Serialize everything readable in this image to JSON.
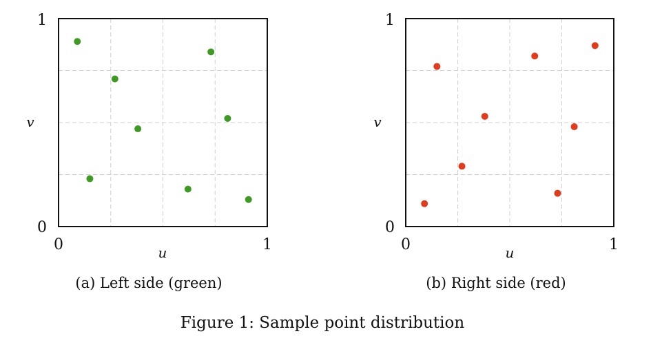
{
  "figure_caption": "Figure 1: Sample point distribution",
  "colors": {
    "green": "#3f9a24",
    "red": "#e23a1d",
    "grid": "#cfcfcf",
    "frame": "#111111"
  },
  "chart_data": [
    {
      "type": "scatter",
      "caption": "(a) Left side (green)",
      "xlabel": "u",
      "ylabel": "v",
      "xlim": [
        0,
        1
      ],
      "ylim": [
        0,
        1
      ],
      "x_ticks": [
        "0",
        "1"
      ],
      "y_ticks": [
        "0",
        "1"
      ],
      "grid": true,
      "color": "#3f9a24",
      "points": [
        {
          "x": 0.09,
          "y": 0.89
        },
        {
          "x": 0.27,
          "y": 0.71
        },
        {
          "x": 0.38,
          "y": 0.47
        },
        {
          "x": 0.15,
          "y": 0.23
        },
        {
          "x": 0.62,
          "y": 0.18
        },
        {
          "x": 0.73,
          "y": 0.84
        },
        {
          "x": 0.81,
          "y": 0.52
        },
        {
          "x": 0.91,
          "y": 0.13
        }
      ]
    },
    {
      "type": "scatter",
      "caption": "(b) Right side (red)",
      "xlabel": "u",
      "ylabel": "v",
      "xlim": [
        0,
        1
      ],
      "ylim": [
        0,
        1
      ],
      "x_ticks": [
        "0",
        "1"
      ],
      "y_ticks": [
        "0",
        "1"
      ],
      "grid": true,
      "color": "#e23a1d",
      "points": [
        {
          "x": 0.15,
          "y": 0.77
        },
        {
          "x": 0.38,
          "y": 0.53
        },
        {
          "x": 0.27,
          "y": 0.29
        },
        {
          "x": 0.09,
          "y": 0.11
        },
        {
          "x": 0.62,
          "y": 0.82
        },
        {
          "x": 0.81,
          "y": 0.48
        },
        {
          "x": 0.73,
          "y": 0.16
        },
        {
          "x": 0.91,
          "y": 0.87
        }
      ]
    }
  ]
}
